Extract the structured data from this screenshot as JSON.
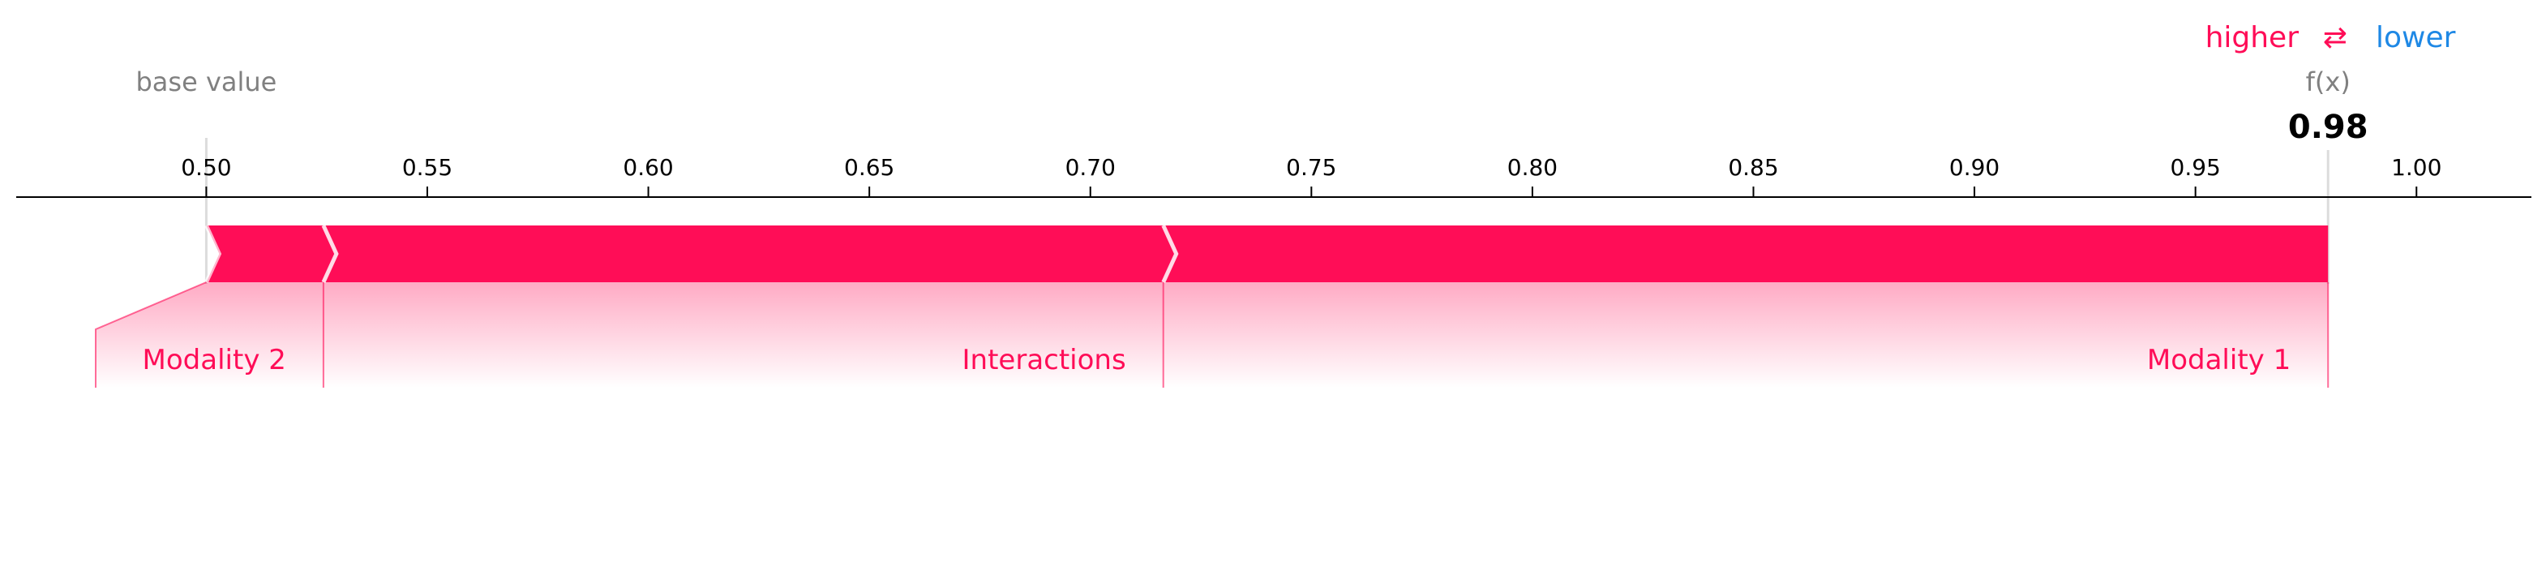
{
  "chart_data": {
    "type": "force",
    "axis": {
      "ticks": [
        0.5,
        0.55,
        0.6,
        0.65,
        0.7,
        0.75,
        0.8,
        0.85,
        0.9,
        0.95,
        1.0
      ],
      "tick_labels": [
        "0.50",
        "0.55",
        "0.60",
        "0.65",
        "0.70",
        "0.75",
        "0.80",
        "0.85",
        "0.90",
        "0.95",
        "1.00"
      ],
      "xlim": [
        0.457,
        1.026
      ]
    },
    "base_value": 0.5,
    "base_value_label": "base value",
    "output_value": 0.98,
    "output_label": "f(x)",
    "output_value_text": "0.98",
    "legend": {
      "higher": "higher",
      "arrow": "⇄",
      "lower": "lower"
    },
    "features": [
      {
        "name": "Modality 2",
        "start": 0.5,
        "end": 0.5265
      },
      {
        "name": "Interactions",
        "start": 0.5265,
        "end": 0.7165
      },
      {
        "name": "Modality 1",
        "start": 0.7165,
        "end": 0.98
      }
    ],
    "colors": {
      "positive": "#ff0d57",
      "negative": "#1e88e5",
      "axis": "#000000",
      "muted": "#808080"
    }
  }
}
